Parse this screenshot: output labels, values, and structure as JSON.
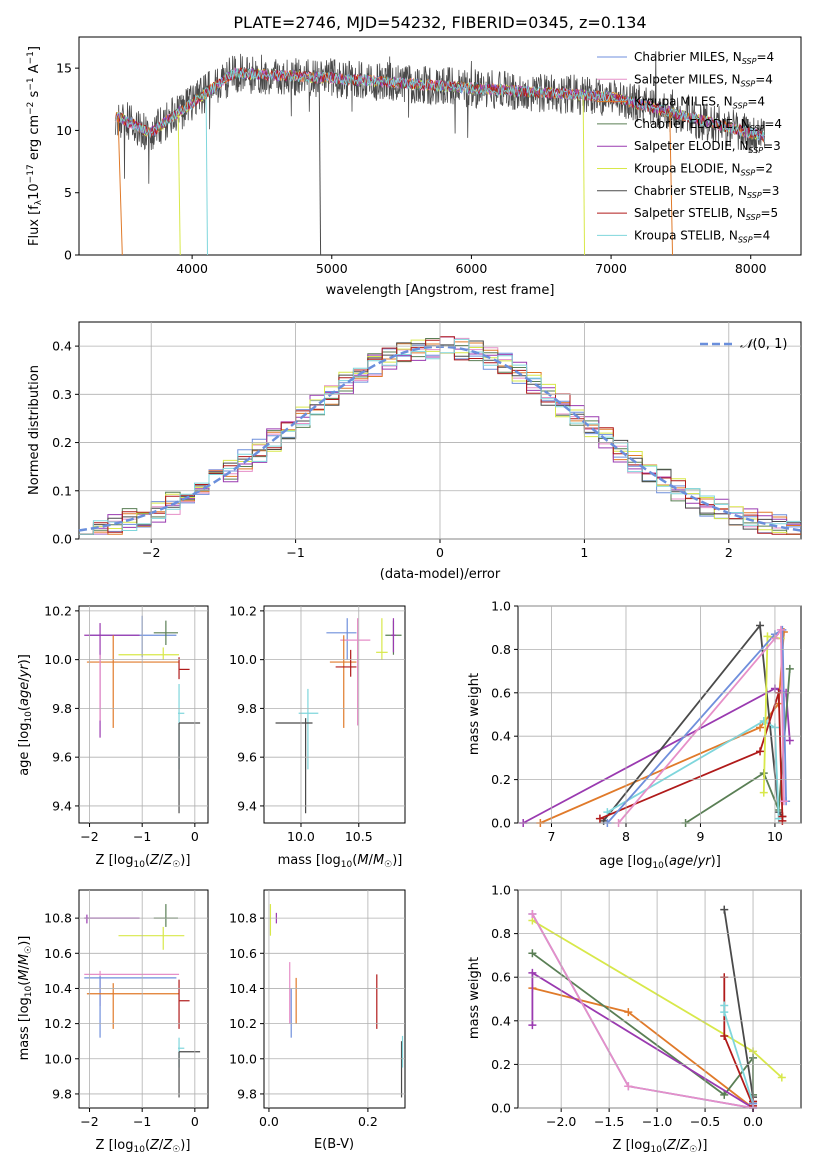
{
  "chart_data": [
    {
      "id": "spectrum",
      "type": "line",
      "title": "PLATE=2746, MJD=54232, FIBERID=0345, z=0.134",
      "xlabel": "wavelength [Angstrom, rest frame]",
      "ylabel": "Flux [f",
      "xlim": [
        3190,
        8360
      ],
      "ylim": [
        0,
        17.5
      ],
      "xticks": [
        4000,
        5000,
        6000,
        7000,
        8000
      ],
      "yticks": [
        0,
        5,
        10,
        15
      ],
      "legend": {
        "placement": "right",
        "entries": [
          {
            "name": "Chabrier MILES, N",
            "nssp": "=4",
            "color": "#6f8fdc"
          },
          {
            "name": "Salpeter MILES, N",
            "nssp": "=4",
            "color": "#e68fc8"
          },
          {
            "name": "Kroupa MILES, N",
            "nssp": "=4",
            "color": "#e07a2a"
          },
          {
            "name": "Chabrier ELODIE, N",
            "nssp": "=4",
            "color": "#5a7f55"
          },
          {
            "name": "Salpeter ELODIE, N",
            "nssp": "=3",
            "color": "#9a3ab0"
          },
          {
            "name": "Kroupa ELODIE, N",
            "nssp": "=2",
            "color": "#d8e84a"
          },
          {
            "name": "Chabrier STELIB, N",
            "nssp": "=3",
            "color": "#4a4a4a"
          },
          {
            "name": "Salpeter STELIB, N",
            "nssp": "=5",
            "color": "#b01a1a"
          },
          {
            "name": "Kroupa STELIB, N",
            "nssp": "=4",
            "color": "#7fd6dc"
          }
        ]
      },
      "series_overview": {
        "start": 3450,
        "start_flux": 11.2,
        "dip_3700_flux": 9.8,
        "plateau_4300_flux": 14.6,
        "mid_5000_flux": 14.2,
        "mid_6000_flux": 13.4,
        "mid_7000_flux": 12.7,
        "end": 8100,
        "end_flux": 9.5
      }
    },
    {
      "id": "residuals",
      "type": "histogram",
      "xlabel": "(data-model)/error",
      "ylabel": "Normed distribution",
      "xlim": [
        -2.5,
        2.5
      ],
      "ylim": [
        0,
        0.45
      ],
      "xticks": [
        -2,
        -1,
        0,
        1,
        2
      ],
      "yticks": [
        0.0,
        0.1,
        0.2,
        0.3,
        0.4
      ],
      "legend": {
        "placement": "top-right",
        "label": "(0, 1)"
      },
      "grid": true
    },
    {
      "id": "age_vs_Z",
      "type": "errorbar",
      "xlabel": "Z [log",
      "ylabel": "age  [log",
      "xlim": [
        -2.2,
        0.25
      ],
      "ylim": [
        9.33,
        10.22
      ],
      "xticks": [
        -2,
        -1,
        0
      ],
      "yticks": [
        9.4,
        9.6,
        9.8,
        10.0,
        10.2
      ],
      "points": [
        {
          "x": -1.0,
          "xl": -2.0,
          "xh": -0.35,
          "y": 10.1,
          "yl": 10.01,
          "yh": 10.18,
          "color": "#6f8fdc"
        },
        {
          "x": -1.8,
          "xl": -2.1,
          "xh": -1.05,
          "y": 10.1,
          "yl": 9.68,
          "yh": 10.15,
          "color": "#9a3ab0"
        },
        {
          "x": -0.55,
          "xl": -0.78,
          "xh": -0.32,
          "y": 10.11,
          "yl": 10.06,
          "yh": 10.16,
          "color": "#5a7f55"
        },
        {
          "x": -1.55,
          "xl": -2.05,
          "xh": -0.3,
          "y": 9.99,
          "yl": 9.72,
          "yh": 10.1,
          "color": "#e07a2a"
        },
        {
          "x": -0.6,
          "xl": -1.45,
          "xh": -0.3,
          "y": 10.02,
          "yl": 10.0,
          "yh": 10.05,
          "color": "#d8e84a"
        },
        {
          "x": -0.3,
          "xl": -0.3,
          "xh": -0.1,
          "y": 9.96,
          "yl": 9.92,
          "yh": 10.01,
          "color": "#b01a1a"
        },
        {
          "x": -0.3,
          "xl": -0.32,
          "xh": -0.2,
          "y": 9.78,
          "yl": 9.55,
          "yh": 9.9,
          "color": "#7fd6dc"
        },
        {
          "x": -0.3,
          "xl": -0.3,
          "xh": 0.1,
          "y": 9.74,
          "yl": 9.37,
          "yh": 9.74,
          "color": "#4a4a4a"
        },
        {
          "x": -1.8,
          "xl": -1.8,
          "xh": -1.8,
          "y": 10.0,
          "yl": 9.75,
          "yh": 10.02,
          "color": "#e68fc8"
        }
      ]
    },
    {
      "id": "age_vs_mass",
      "type": "errorbar",
      "xlabel": "mass [log",
      "ylabel": "",
      "xlim": [
        9.68,
        10.9
      ],
      "ylim": [
        9.33,
        10.22
      ],
      "xticks": [
        10.0,
        10.5
      ],
      "yticks": [
        9.4,
        9.6,
        9.8,
        10.0,
        10.2
      ],
      "points": [
        {
          "x": 10.4,
          "xl": 10.22,
          "xh": 10.48,
          "y": 10.11,
          "yl": 10.0,
          "yh": 10.17,
          "color": "#6f8fdc"
        },
        {
          "x": 10.49,
          "xl": 10.34,
          "xh": 10.6,
          "y": 10.08,
          "yl": 9.73,
          "yh": 10.17,
          "color": "#e68fc8"
        },
        {
          "x": 10.37,
          "xl": 10.25,
          "xh": 10.48,
          "y": 9.99,
          "yl": 9.72,
          "yh": 10.1,
          "color": "#e07a2a"
        },
        {
          "x": 10.8,
          "xl": 10.73,
          "xh": 10.87,
          "y": 10.1,
          "yl": 10.02,
          "yh": 10.16,
          "color": "#5a7f55"
        },
        {
          "x": 10.8,
          "xl": 10.78,
          "xh": 10.82,
          "y": 10.1,
          "yl": 10.03,
          "yh": 10.17,
          "color": "#9a3ab0"
        },
        {
          "x": 10.7,
          "xl": 10.65,
          "xh": 10.75,
          "y": 10.03,
          "yl": 10.0,
          "yh": 10.17,
          "color": "#d8e84a"
        },
        {
          "x": 10.43,
          "xl": 10.3,
          "xh": 10.48,
          "y": 9.97,
          "yl": 9.93,
          "yh": 10.04,
          "color": "#b01a1a"
        },
        {
          "x": 10.06,
          "xl": 9.98,
          "xh": 10.15,
          "y": 9.78,
          "yl": 9.55,
          "yh": 9.88,
          "color": "#7fd6dc"
        },
        {
          "x": 10.04,
          "xl": 9.78,
          "xh": 10.1,
          "y": 9.74,
          "yl": 9.37,
          "yh": 9.76,
          "color": "#4a4a4a"
        }
      ]
    },
    {
      "id": "weight_vs_age",
      "type": "line",
      "xlabel": "age  [log",
      "ylabel": "mass weight",
      "xlim": [
        6.55,
        10.35
      ],
      "ylim": [
        0,
        1.0
      ],
      "xticks": [
        7,
        8,
        9,
        10
      ],
      "yticks": [
        0.0,
        0.2,
        0.4,
        0.6,
        0.8,
        1.0
      ],
      "grid": true,
      "series": [
        {
          "color": "#e07a2a",
          "x": [
            6.85,
            9.8,
            10.05,
            10.12
          ],
          "y": [
            0.0,
            0.44,
            0.55,
            0.88
          ]
        },
        {
          "color": "#9a3ab0",
          "x": [
            6.62,
            10.0,
            10.15,
            10.2
          ],
          "y": [
            0.0,
            0.62,
            0.6,
            0.38
          ]
        },
        {
          "color": "#4a4a4a",
          "x": [
            7.7,
            9.8,
            10.05,
            10.1
          ],
          "y": [
            0.01,
            0.91,
            0.05,
            0.03
          ]
        },
        {
          "color": "#5a7f55",
          "x": [
            8.8,
            9.85,
            10.05,
            10.2
          ],
          "y": [
            0.0,
            0.23,
            0.06,
            0.71
          ]
        },
        {
          "color": "#7fd6dc",
          "x": [
            7.75,
            9.85,
            10.0,
            10.05
          ],
          "y": [
            0.05,
            0.47,
            0.44,
            0.02
          ]
        },
        {
          "color": "#b01a1a",
          "x": [
            7.65,
            9.8,
            10.05,
            10.1,
            10.1
          ],
          "y": [
            0.02,
            0.33,
            0.6,
            0.03,
            0.01
          ]
        },
        {
          "color": "#d8e84a",
          "x": [
            9.85,
            9.9,
            10.08
          ],
          "y": [
            0.14,
            0.86,
            0.85
          ]
        },
        {
          "color": "#6f8fdc",
          "x": [
            7.75,
            10.0,
            10.1,
            10.15
          ],
          "y": [
            0.0,
            0.87,
            0.89,
            0.1
          ]
        },
        {
          "color": "#e68fc8",
          "x": [
            7.9,
            10.0,
            10.08,
            10.12
          ],
          "y": [
            0.0,
            0.85,
            0.89,
            0.1
          ]
        }
      ]
    },
    {
      "id": "mass_vs_Z",
      "type": "errorbar",
      "xlabel": "Z [log",
      "ylabel": "mass [log",
      "xlim": [
        -2.2,
        0.25
      ],
      "ylim": [
        9.72,
        10.96
      ],
      "xticks": [
        -2,
        -1,
        0
      ],
      "yticks": [
        9.8,
        10.0,
        10.2,
        10.4,
        10.6,
        10.8
      ],
      "points": [
        {
          "x": -2.05,
          "xl": -2.1,
          "xh": -1.05,
          "y": 10.8,
          "yl": 10.77,
          "yh": 10.82,
          "color": "#9a3ab0"
        },
        {
          "x": -0.55,
          "xl": -0.78,
          "xh": -0.32,
          "y": 10.8,
          "yl": 10.75,
          "yh": 10.88,
          "color": "#5a7f55"
        },
        {
          "x": -0.6,
          "xl": -1.45,
          "xh": -0.2,
          "y": 10.7,
          "yl": 10.62,
          "yh": 10.75,
          "color": "#d8e84a"
        },
        {
          "x": -1.8,
          "xl": -2.1,
          "xh": -0.3,
          "y": 10.48,
          "yl": 10.3,
          "yh": 10.5,
          "color": "#e68fc8"
        },
        {
          "x": -1.8,
          "xl": -2.1,
          "xh": -0.35,
          "y": 10.46,
          "yl": 10.12,
          "yh": 10.47,
          "color": "#6f8fdc"
        },
        {
          "x": -1.55,
          "xl": -2.05,
          "xh": -0.3,
          "y": 10.37,
          "yl": 10.17,
          "yh": 10.43,
          "color": "#e07a2a"
        },
        {
          "x": -0.3,
          "xl": -0.3,
          "xh": -0.1,
          "y": 10.33,
          "yl": 10.17,
          "yh": 10.45,
          "color": "#b01a1a"
        },
        {
          "x": -0.3,
          "xl": -0.32,
          "xh": -0.2,
          "y": 10.06,
          "yl": 9.95,
          "yh": 10.12,
          "color": "#7fd6dc"
        },
        {
          "x": -0.3,
          "xl": -0.3,
          "xh": 0.1,
          "y": 10.04,
          "yl": 9.78,
          "yh": 10.04,
          "color": "#4a4a4a"
        }
      ]
    },
    {
      "id": "mass_vs_ebv",
      "type": "errorbar",
      "xlabel": "E(B-V)",
      "ylabel": "",
      "xlim": [
        -0.01,
        0.275
      ],
      "ylim": [
        9.72,
        10.96
      ],
      "xticks": [
        0.0,
        0.2
      ],
      "yticks": [
        9.8,
        10.0,
        10.2,
        10.4,
        10.6,
        10.8
      ],
      "points": [
        {
          "x": 0.003,
          "y": 10.8,
          "yl": 10.7,
          "yh": 10.88,
          "color": "#d8e84a"
        },
        {
          "x": 0.015,
          "y": 10.8,
          "yl": 10.77,
          "yh": 10.83,
          "color": "#9a3ab0"
        },
        {
          "x": 0.042,
          "y": 10.4,
          "yl": 10.2,
          "yh": 10.55,
          "color": "#e68fc8"
        },
        {
          "x": 0.045,
          "y": 10.3,
          "yl": 10.12,
          "yh": 10.4,
          "color": "#6f8fdc"
        },
        {
          "x": 0.055,
          "y": 10.33,
          "yl": 10.2,
          "yh": 10.46,
          "color": "#e07a2a"
        },
        {
          "x": 0.218,
          "y": 10.33,
          "yl": 10.17,
          "yh": 10.48,
          "color": "#b01a1a"
        },
        {
          "x": 0.268,
          "y": 9.95,
          "yl": 9.78,
          "yh": 10.1,
          "color": "#4a4a4a"
        },
        {
          "x": 0.27,
          "y": 10.05,
          "yl": 9.95,
          "yh": 10.13,
          "color": "#7fd6dc"
        }
      ]
    },
    {
      "id": "weight_vs_Z",
      "type": "line",
      "xlabel": "Z [log",
      "ylabel": "mass weight",
      "xlim": [
        -2.45,
        0.5
      ],
      "ylim": [
        0,
        1.0
      ],
      "xticks": [
        -2.0,
        -1.5,
        -1.0,
        -0.5,
        0.0
      ],
      "yticks": [
        0.0,
        0.2,
        0.4,
        0.6,
        0.8,
        1.0
      ],
      "grid": true,
      "series": [
        {
          "color": "#d8e84a",
          "x": [
            -2.3,
            0.0,
            0.3
          ],
          "y": [
            0.86,
            0.26,
            0.14
          ]
        },
        {
          "color": "#e07a2a",
          "x": [
            -2.3,
            -1.3,
            0.0
          ],
          "y": [
            0.55,
            0.44,
            0.0
          ]
        },
        {
          "color": "#5a7f55",
          "x": [
            -2.3,
            -0.3,
            0.0,
            0.0
          ],
          "y": [
            0.71,
            0.06,
            0.23,
            0.06
          ]
        },
        {
          "color": "#9a3ab0",
          "x": [
            -2.3,
            -2.3,
            0.0
          ],
          "y": [
            0.38,
            0.62,
            0.0
          ]
        },
        {
          "color": "#4a4a4a",
          "x": [
            -0.3,
            0.0,
            0.0
          ],
          "y": [
            0.91,
            0.05,
            0.03
          ]
        },
        {
          "color": "#b01a1a",
          "x": [
            -0.3,
            -0.3,
            0.0,
            0.0
          ],
          "y": [
            0.6,
            0.33,
            0.01,
            0.03
          ]
        },
        {
          "color": "#7fd6dc",
          "x": [
            -0.3,
            -0.3,
            0.0
          ],
          "y": [
            0.47,
            0.44,
            0.02
          ]
        },
        {
          "color": "#6f8fdc",
          "x": [
            -2.3,
            -1.3,
            0.0,
            0.0
          ],
          "y": [
            0.89,
            0.1,
            0.0,
            0.02
          ]
        },
        {
          "color": "#e68fc8",
          "x": [
            -2.3,
            -1.3,
            0.0
          ],
          "y": [
            0.89,
            0.1,
            0.0
          ]
        }
      ]
    }
  ]
}
